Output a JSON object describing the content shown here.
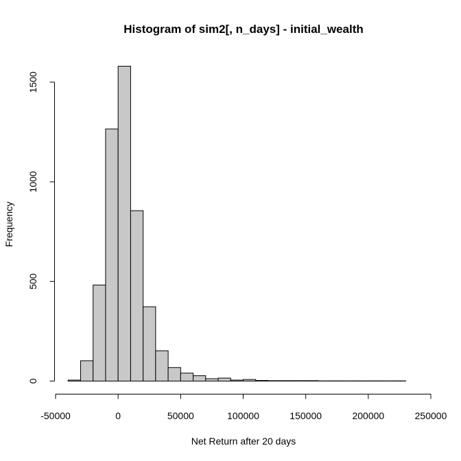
{
  "chart_data": {
    "type": "bar",
    "title": "Histogram of sim2[, n_days] - initial_wealth",
    "xlabel": "Net Return after 20 days",
    "ylabel": "Frequency",
    "xlim": [
      -50000,
      250000
    ],
    "ylim": [
      0,
      1580
    ],
    "bin_width": 10000,
    "bin_start": -40000,
    "values": [
      5,
      102,
      482,
      1265,
      1580,
      855,
      373,
      152,
      68,
      40,
      27,
      12,
      15,
      5,
      8,
      3,
      2,
      2,
      2,
      2,
      1,
      1,
      1,
      1,
      1,
      1,
      1
    ],
    "x_ticks": [
      -50000,
      0,
      50000,
      100000,
      150000,
      200000,
      250000
    ],
    "x_tick_labels": [
      "-50000",
      "0",
      "50000",
      "100000",
      "150000",
      "200000",
      "250000"
    ],
    "y_ticks": [
      0,
      500,
      1000,
      1500
    ],
    "y_tick_labels": [
      "0",
      "500",
      "1000",
      "1500"
    ],
    "bar_color": "#c8c8c8",
    "grid": false
  }
}
